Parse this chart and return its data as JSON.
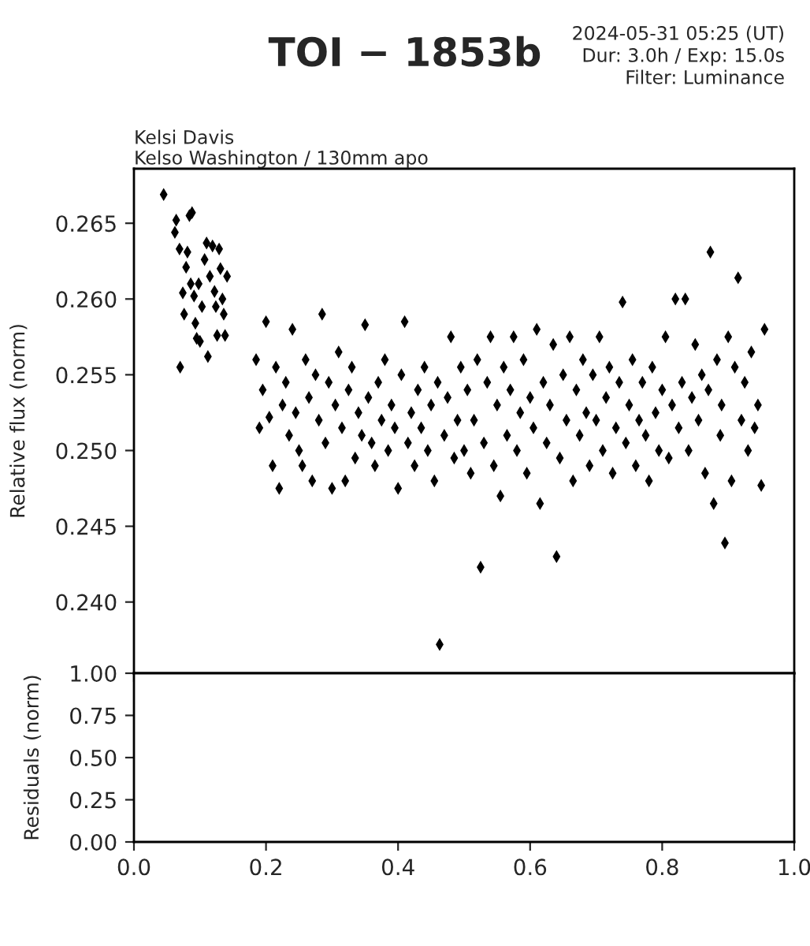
{
  "chart_data": [
    {
      "type": "scatter",
      "title": "TOI − 1853b",
      "ylabel": "Relative flux (norm)",
      "annotations": [
        "2024-05-31 05:25 (UT)",
        "Dur: 3.0h / Exp: 15.0s",
        "Filter: Luminance",
        "Kelsi Davis",
        "Kelso Washington / 130mm apo"
      ],
      "marker": "diamond",
      "grid": false,
      "tick_labels": "y",
      "xlim": [
        0,
        1
      ],
      "ylim": [
        0.2353,
        0.2686
      ],
      "yticks": [
        {
          "value": 0.24,
          "label": "0.240"
        },
        {
          "value": 0.245,
          "label": "0.245"
        },
        {
          "value": 0.25,
          "label": "0.250"
        },
        {
          "value": 0.255,
          "label": "0.255"
        },
        {
          "value": 0.26,
          "label": "0.260"
        },
        {
          "value": 0.265,
          "label": "0.265"
        }
      ],
      "series": [
        {
          "color": "#000000",
          "x": [
            0.045,
            0.062,
            0.064,
            0.069,
            0.074,
            0.076,
            0.079,
            0.081,
            0.084,
            0.088,
            0.091,
            0.093,
            0.095,
            0.098,
            0.103,
            0.107,
            0.11,
            0.115,
            0.119,
            0.122,
            0.126,
            0.129,
            0.131,
            0.134,
            0.138,
            0.141,
            0.07,
            0.086,
            0.1,
            0.112,
            0.124,
            0.136,
            0.185,
            0.19,
            0.195,
            0.2,
            0.205,
            0.21,
            0.215,
            0.22,
            0.225,
            0.23,
            0.235,
            0.24,
            0.245,
            0.25,
            0.255,
            0.26,
            0.265,
            0.27,
            0.275,
            0.28,
            0.285,
            0.29,
            0.295,
            0.3,
            0.305,
            0.31,
            0.315,
            0.32,
            0.325,
            0.33,
            0.335,
            0.34,
            0.345,
            0.35,
            0.355,
            0.36,
            0.365,
            0.37,
            0.375,
            0.38,
            0.385,
            0.39,
            0.395,
            0.4,
            0.405,
            0.41,
            0.415,
            0.42,
            0.425,
            0.43,
            0.435,
            0.44,
            0.445,
            0.45,
            0.455,
            0.46,
            0.463,
            0.47,
            0.475,
            0.48,
            0.485,
            0.49,
            0.495,
            0.5,
            0.505,
            0.51,
            0.515,
            0.52,
            0.525,
            0.53,
            0.535,
            0.54,
            0.545,
            0.55,
            0.555,
            0.56,
            0.565,
            0.57,
            0.575,
            0.58,
            0.585,
            0.59,
            0.595,
            0.6,
            0.605,
            0.61,
            0.615,
            0.62,
            0.625,
            0.63,
            0.635,
            0.64,
            0.645,
            0.65,
            0.655,
            0.66,
            0.665,
            0.67,
            0.675,
            0.68,
            0.685,
            0.69,
            0.695,
            0.7,
            0.705,
            0.71,
            0.715,
            0.72,
            0.725,
            0.73,
            0.735,
            0.74,
            0.745,
            0.75,
            0.755,
            0.76,
            0.765,
            0.77,
            0.775,
            0.78,
            0.785,
            0.79,
            0.795,
            0.8,
            0.805,
            0.81,
            0.815,
            0.82,
            0.825,
            0.83,
            0.835,
            0.84,
            0.845,
            0.85,
            0.855,
            0.86,
            0.865,
            0.87,
            0.873,
            0.878,
            0.883,
            0.888,
            0.89,
            0.895,
            0.9,
            0.905,
            0.91,
            0.915,
            0.92,
            0.925,
            0.93,
            0.935,
            0.94,
            0.945,
            0.95,
            0.955
          ],
          "values": [
            0.2669,
            0.2644,
            0.2652,
            0.2633,
            0.2604,
            0.259,
            0.2621,
            0.2631,
            0.2655,
            0.2657,
            0.2602,
            0.2584,
            0.2574,
            0.261,
            0.2595,
            0.2626,
            0.2637,
            0.2615,
            0.2635,
            0.2605,
            0.2576,
            0.2633,
            0.262,
            0.26,
            0.2576,
            0.2615,
            0.2555,
            0.261,
            0.2572,
            0.2562,
            0.2595,
            0.259,
            0.256,
            0.2515,
            0.254,
            0.2585,
            0.2522,
            0.249,
            0.2555,
            0.2475,
            0.253,
            0.2545,
            0.251,
            0.258,
            0.2525,
            0.25,
            0.249,
            0.256,
            0.2535,
            0.248,
            0.255,
            0.252,
            0.259,
            0.2505,
            0.2545,
            0.2475,
            0.253,
            0.2565,
            0.2515,
            0.248,
            0.254,
            0.2555,
            0.2495,
            0.2525,
            0.251,
            0.2583,
            0.2535,
            0.2505,
            0.249,
            0.2545,
            0.252,
            0.256,
            0.25,
            0.253,
            0.2515,
            0.2475,
            0.255,
            0.2585,
            0.2505,
            0.2525,
            0.249,
            0.254,
            0.2515,
            0.2555,
            0.25,
            0.253,
            0.248,
            0.2545,
            0.2372,
            0.251,
            0.2535,
            0.2575,
            0.2495,
            0.252,
            0.2555,
            0.25,
            0.254,
            0.2485,
            0.252,
            0.256,
            0.2423,
            0.2505,
            0.2545,
            0.2575,
            0.249,
            0.253,
            0.247,
            0.2555,
            0.251,
            0.254,
            0.2575,
            0.25,
            0.2525,
            0.256,
            0.2485,
            0.2535,
            0.2515,
            0.258,
            0.2465,
            0.2545,
            0.2505,
            0.253,
            0.257,
            0.243,
            0.2495,
            0.255,
            0.252,
            0.2575,
            0.248,
            0.254,
            0.251,
            0.256,
            0.2525,
            0.249,
            0.255,
            0.252,
            0.2575,
            0.25,
            0.2535,
            0.2555,
            0.2485,
            0.2515,
            0.2545,
            0.2598,
            0.2505,
            0.253,
            0.256,
            0.249,
            0.252,
            0.2545,
            0.251,
            0.248,
            0.2555,
            0.2525,
            0.25,
            0.254,
            0.2575,
            0.2495,
            0.253,
            0.26,
            0.2515,
            0.2545,
            0.26,
            0.25,
            0.2535,
            0.257,
            0.252,
            0.255,
            0.2485,
            0.254,
            0.2631,
            0.2465,
            0.256,
            0.251,
            0.253,
            0.2439,
            0.2575,
            0.248,
            0.2555,
            0.2614,
            0.252,
            0.2545,
            0.25,
            0.2565,
            0.2515,
            0.253,
            0.2477,
            0.258
          ]
        }
      ]
    },
    {
      "type": "scatter",
      "ylabel": "Residuals (norm)",
      "grid": false,
      "xlim": [
        0,
        1
      ],
      "xticks": [
        {
          "value": 0,
          "label": "0.0"
        },
        {
          "value": 0.2,
          "label": "0.2"
        },
        {
          "value": 0.4,
          "label": "0.4"
        },
        {
          "value": 0.6,
          "label": "0.6"
        },
        {
          "value": 0.8,
          "label": "0.8"
        },
        {
          "value": 1,
          "label": "1.0"
        }
      ],
      "ylim": [
        0,
        1
      ],
      "yticks": [
        {
          "value": 0,
          "label": "0.00"
        },
        {
          "value": 0.25,
          "label": "0.25"
        },
        {
          "value": 0.5,
          "label": "0.50"
        },
        {
          "value": 0.75,
          "label": "0.75"
        },
        {
          "value": 1,
          "label": "1.00"
        }
      ]
    }
  ]
}
